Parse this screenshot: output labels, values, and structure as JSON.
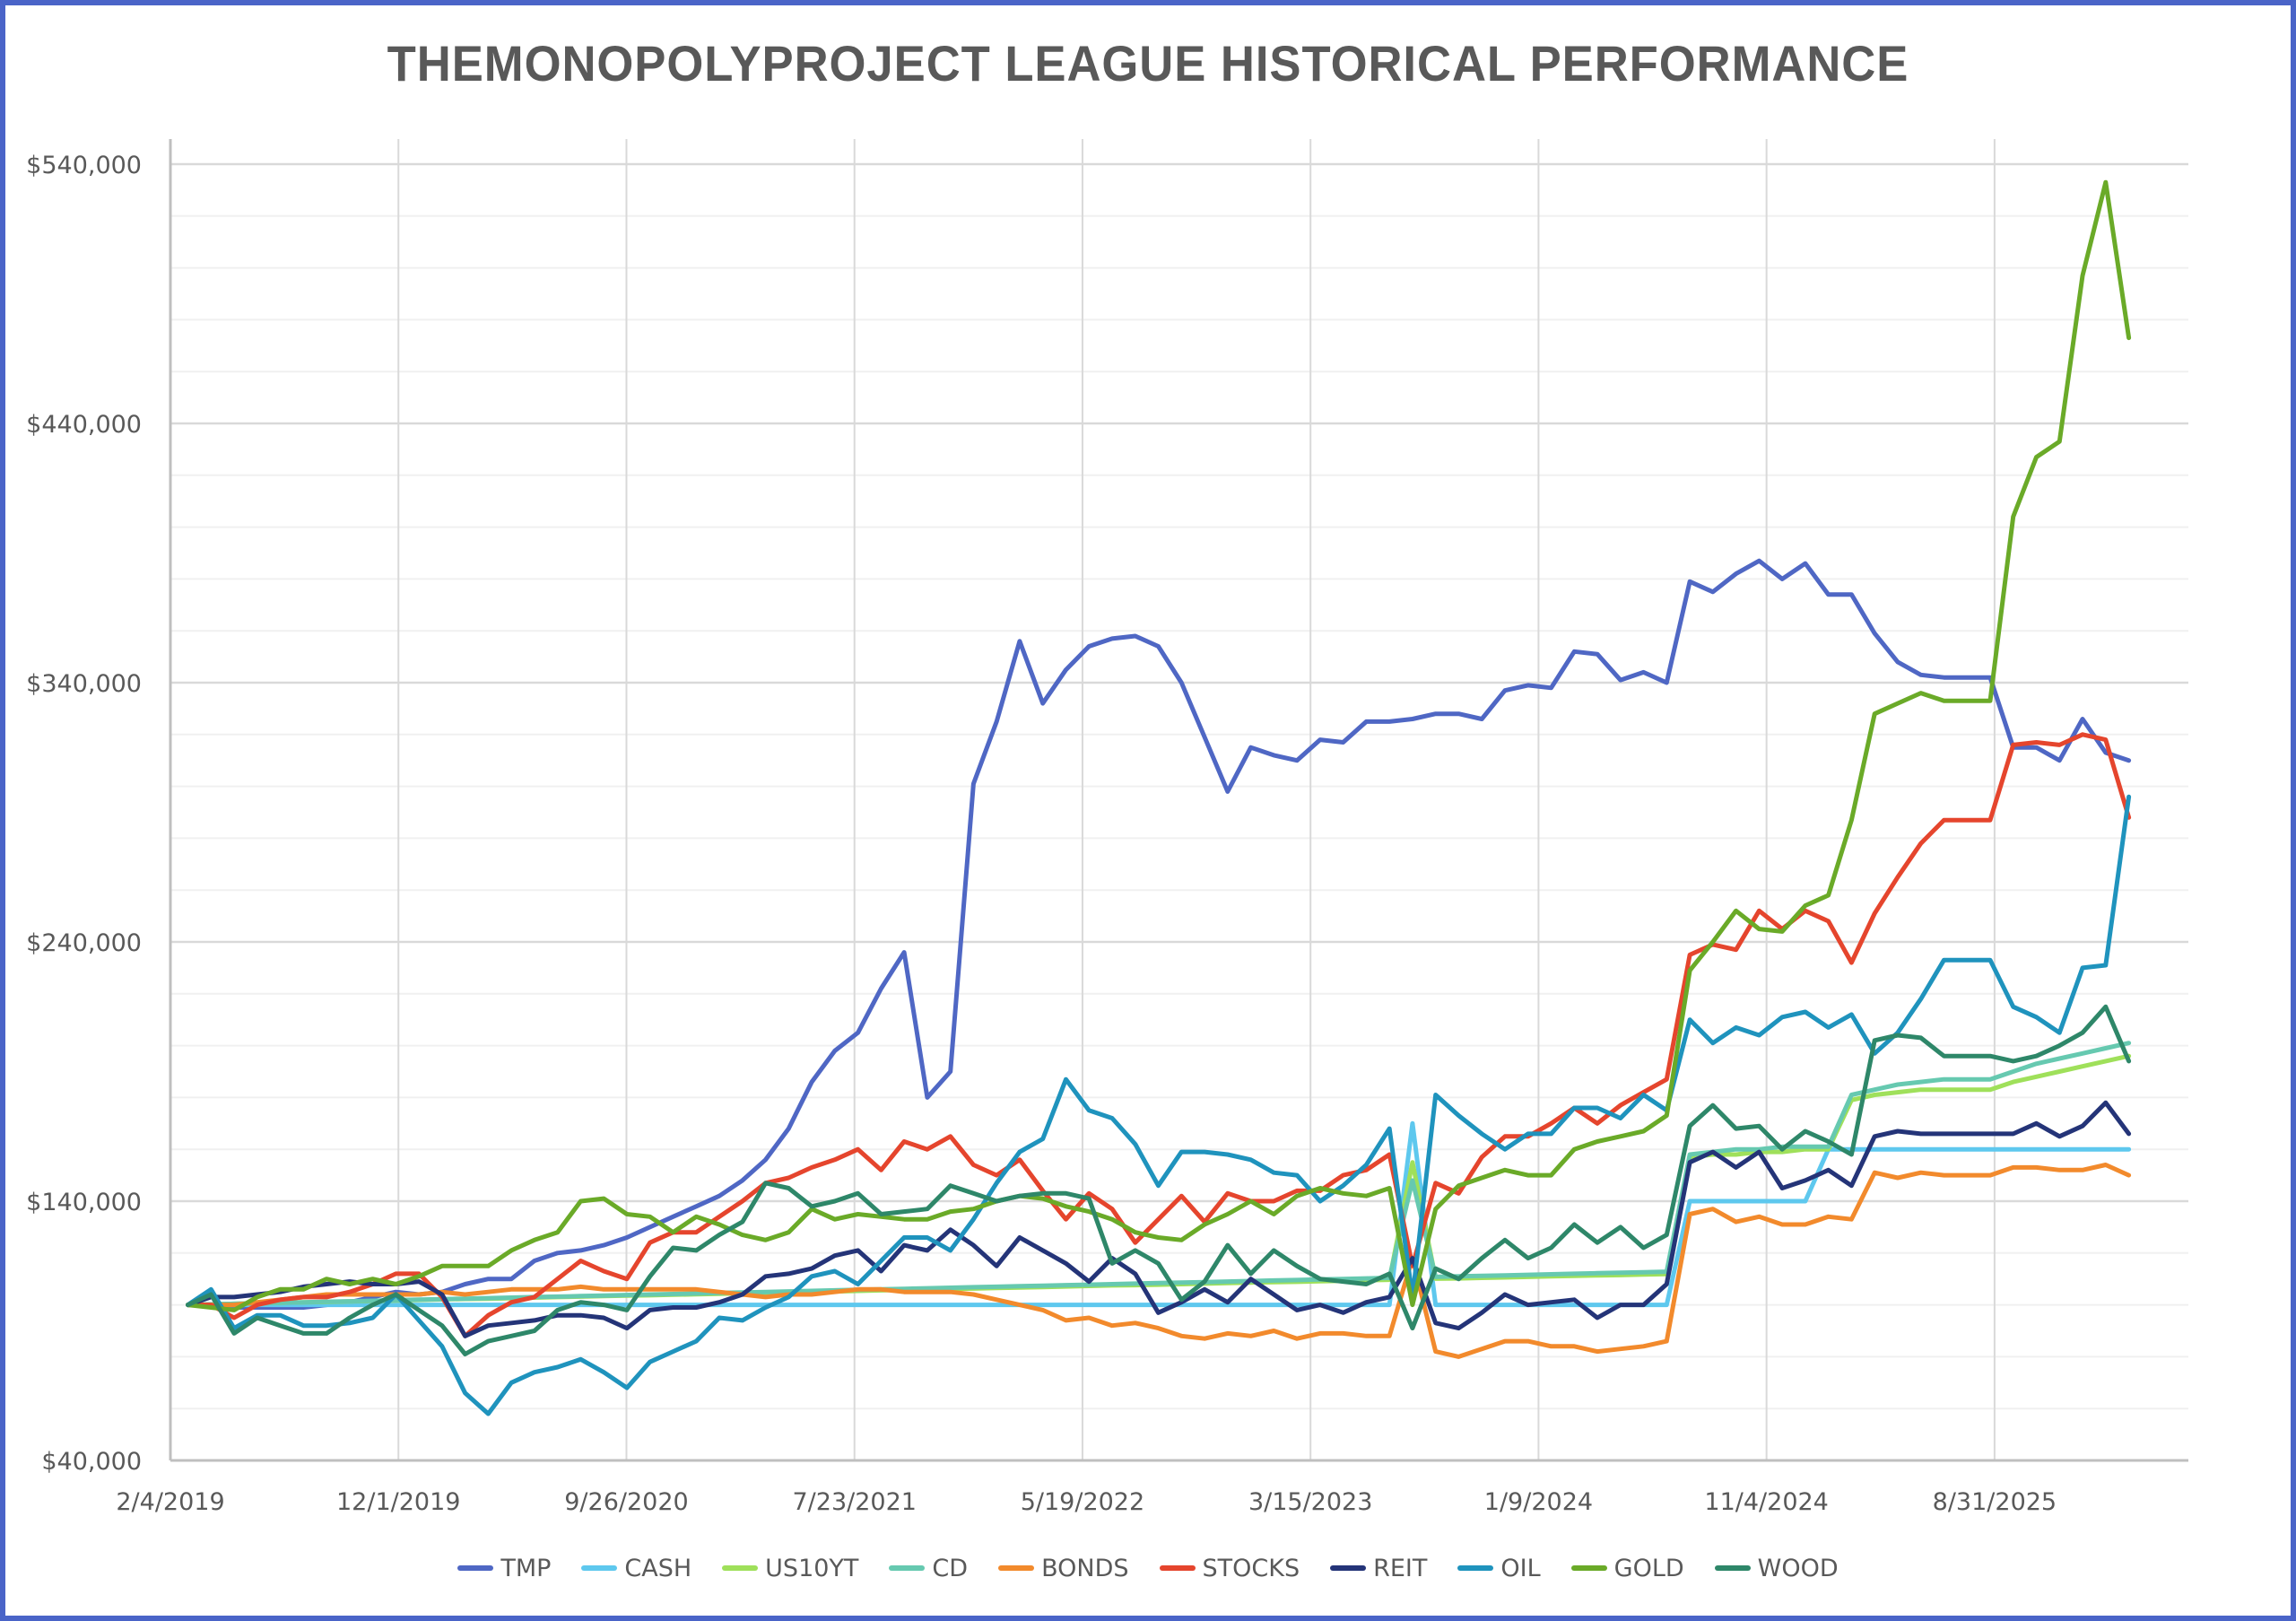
{
  "chart_data": {
    "type": "line",
    "title": "THEMONOPOLYPROJECT LEAGUE HISTORICAL PERFORMANCE",
    "xlabel": "",
    "ylabel": "",
    "ylim": [
      40000,
      540000
    ],
    "y_ticks": [
      "$540,000",
      "$440,000",
      "$340,000",
      "$240,000",
      "$140,000",
      "$40,000"
    ],
    "y_tick_values": [
      540000,
      440000,
      340000,
      240000,
      140000,
      40000
    ],
    "y_minor_step": 20000,
    "x_ticks": [
      "2/4/2019",
      "12/1/2019",
      "9/26/2020",
      "7/23/2021",
      "5/19/2022",
      "3/15/2023",
      "1/9/2024",
      "11/4/2024",
      "8/31/2025"
    ],
    "x_tick_interval_days": 300,
    "x_point_interval_days": 30.4,
    "x_first_point_offset_days": 23,
    "x_range_days": [
      0,
      2655
    ],
    "grid": true,
    "legend_position": "bottom",
    "series": [
      {
        "name": "TMP",
        "color": "#4f67c4",
        "values": [
          100000,
          100000,
          99000,
          99000,
          99000,
          99000,
          100000,
          101000,
          103000,
          105000,
          104000,
          105000,
          108000,
          110000,
          110000,
          117000,
          120000,
          121000,
          123000,
          126000,
          130000,
          134000,
          138000,
          142000,
          148000,
          156000,
          168000,
          186000,
          198000,
          205000,
          222000,
          236000,
          180000,
          190000,
          301000,
          325000,
          356000,
          332000,
          345000,
          354000,
          357000,
          358000,
          354000,
          340000,
          319000,
          298000,
          315000,
          312000,
          310000,
          318000,
          317000,
          325000,
          325000,
          326000,
          328000,
          328000,
          326000,
          337000,
          339000,
          338000,
          352000,
          351000,
          341000,
          344000,
          340000,
          379000,
          375000,
          382000,
          387000,
          380000,
          386000,
          374000,
          374000,
          359000,
          348000,
          343000,
          342000,
          342000,
          342000,
          315000,
          315000,
          310000,
          326000,
          313000,
          310000
        ]
      },
      {
        "name": "CASH",
        "color": "#5ec8ee",
        "values": [
          100000,
          100000,
          100000,
          100000,
          100000,
          100000,
          100000,
          100000,
          100000,
          100000,
          100000,
          100000,
          100000,
          100000,
          100000,
          100000,
          100000,
          100000,
          100000,
          100000,
          100000,
          100000,
          100000,
          100000,
          100000,
          100000,
          100000,
          100000,
          100000,
          100000,
          100000,
          100000,
          100000,
          100000,
          100000,
          100000,
          100000,
          100000,
          100000,
          100000,
          100000,
          100000,
          100000,
          100000,
          100000,
          100000,
          100000,
          100000,
          100000,
          100000,
          100000,
          100000,
          100000,
          170000,
          100000,
          100000,
          100000,
          100000,
          100000,
          100000,
          100000,
          100000,
          100000,
          100000,
          100000,
          140000,
          140000,
          140000,
          140000,
          140000,
          140000,
          160000,
          160000,
          160000,
          160000,
          160000,
          160000,
          160000,
          160000,
          160000,
          160000,
          160000,
          160000,
          160000,
          160000
        ]
      },
      {
        "name": "US10YT",
        "color": "#9fe05a",
        "values": [
          100000,
          100200,
          100400,
          100600,
          100800,
          101000,
          101100,
          101300,
          101500,
          101700,
          101900,
          102100,
          102300,
          102400,
          102600,
          102800,
          103000,
          103200,
          103400,
          103600,
          103700,
          103900,
          104100,
          104300,
          104500,
          104700,
          104900,
          105000,
          105200,
          105400,
          105600,
          105800,
          106000,
          106200,
          106300,
          106500,
          106700,
          106900,
          107100,
          107300,
          107500,
          107600,
          107800,
          108000,
          108200,
          108400,
          108600,
          108800,
          108900,
          109100,
          109300,
          109500,
          109700,
          155000,
          110100,
          110200,
          110400,
          110600,
          110800,
          111000,
          111200,
          111400,
          111500,
          111700,
          111900,
          157000,
          158000,
          158000,
          159000,
          159000,
          160000,
          160000,
          179000,
          181000,
          182000,
          183000,
          183000,
          183000,
          183000,
          186000,
          188000,
          190000,
          192000,
          194000,
          196000
        ]
      },
      {
        "name": "CD",
        "color": "#66c9b0",
        "values": [
          100000,
          100200,
          100400,
          100600,
          100800,
          101000,
          101200,
          101400,
          101600,
          101800,
          102000,
          102200,
          102400,
          102600,
          102800,
          103000,
          103200,
          103400,
          103600,
          103800,
          104000,
          104200,
          104400,
          104600,
          104800,
          105000,
          105200,
          105400,
          105600,
          105800,
          106000,
          106200,
          106400,
          106600,
          106800,
          107000,
          107200,
          107400,
          107600,
          107800,
          108000,
          108200,
          108400,
          108600,
          108800,
          109000,
          109200,
          109400,
          109600,
          109800,
          110000,
          110200,
          110400,
          148000,
          110800,
          111000,
          111200,
          111400,
          111600,
          111800,
          112000,
          112200,
          112400,
          112600,
          112800,
          158000,
          159000,
          160000,
          160000,
          161000,
          161000,
          161000,
          181000,
          183000,
          185000,
          186000,
          187000,
          187000,
          187000,
          190000,
          193000,
          195000,
          197000,
          199000,
          201000
        ]
      },
      {
        "name": "BONDS",
        "color": "#f28a2c",
        "values": [
          100000,
          100000,
          100000,
          101000,
          102000,
          103000,
          104000,
          104000,
          104000,
          104000,
          104000,
          105000,
          104000,
          105000,
          106000,
          106000,
          106000,
          107000,
          106000,
          106000,
          106000,
          106000,
          106000,
          105000,
          104000,
          103000,
          104000,
          104000,
          105000,
          106000,
          106000,
          105000,
          105000,
          105000,
          104000,
          102000,
          100000,
          98000,
          94000,
          95000,
          92000,
          93000,
          91000,
          88000,
          87000,
          89000,
          88000,
          90000,
          87000,
          89000,
          89000,
          88000,
          88000,
          118000,
          82000,
          80000,
          83000,
          86000,
          86000,
          84000,
          84000,
          82000,
          83000,
          84000,
          86000,
          135000,
          137000,
          132000,
          134000,
          131000,
          131000,
          134000,
          133000,
          151000,
          149000,
          151000,
          150000,
          150000,
          150000,
          153000,
          153000,
          152000,
          152000,
          154000,
          150000
        ]
      },
      {
        "name": "STOCKS",
        "color": "#e5452d",
        "values": [
          100000,
          100000,
          95000,
          100000,
          102000,
          103000,
          103000,
          105000,
          108000,
          112000,
          112000,
          103000,
          88000,
          96000,
          101000,
          103000,
          110000,
          117000,
          113000,
          110000,
          124000,
          128000,
          128000,
          134000,
          140000,
          147000,
          149000,
          153000,
          156000,
          160000,
          152000,
          163000,
          160000,
          165000,
          154000,
          150000,
          156000,
          144000,
          133000,
          143000,
          137000,
          124000,
          133000,
          142000,
          132000,
          143000,
          140000,
          140000,
          144000,
          144000,
          150000,
          152000,
          158000,
          115000,
          147000,
          143000,
          157000,
          165000,
          165000,
          170000,
          176000,
          170000,
          177000,
          182000,
          187000,
          235000,
          239000,
          237000,
          252000,
          245000,
          252000,
          248000,
          232000,
          251000,
          265000,
          278000,
          287000,
          287000,
          287000,
          316000,
          317000,
          316000,
          320000,
          318000,
          288000
        ]
      },
      {
        "name": "REIT",
        "color": "#243478",
        "values": [
          100000,
          103000,
          103000,
          104000,
          105000,
          107000,
          108000,
          109000,
          108000,
          108000,
          109000,
          104000,
          88000,
          92000,
          93000,
          94000,
          96000,
          96000,
          95000,
          91000,
          98000,
          99000,
          99000,
          101000,
          104000,
          111000,
          112000,
          114000,
          119000,
          121000,
          113000,
          123000,
          121000,
          129000,
          123000,
          115000,
          126000,
          121000,
          116000,
          109000,
          118000,
          112000,
          97000,
          101000,
          106000,
          101000,
          110000,
          104000,
          98000,
          100000,
          97000,
          101000,
          103000,
          118000,
          93000,
          91000,
          97000,
          104000,
          100000,
          101000,
          102000,
          95000,
          100000,
          100000,
          108000,
          155000,
          159000,
          153000,
          159000,
          145000,
          148000,
          152000,
          146000,
          165000,
          167000,
          166000,
          166000,
          166000,
          166000,
          166000,
          170000,
          165000,
          169000,
          178000,
          166000
        ]
      },
      {
        "name": "OIL",
        "color": "#1f93bd",
        "values": [
          100000,
          106000,
          91000,
          96000,
          96000,
          92000,
          92000,
          93000,
          95000,
          104000,
          94000,
          84000,
          66000,
          58000,
          70000,
          74000,
          76000,
          79000,
          74000,
          68000,
          78000,
          82000,
          86000,
          95000,
          94000,
          99000,
          103000,
          111000,
          113000,
          108000,
          117000,
          126000,
          126000,
          121000,
          133000,
          147000,
          159000,
          164000,
          187000,
          175000,
          172000,
          162000,
          146000,
          159000,
          159000,
          158000,
          156000,
          151000,
          150000,
          140000,
          146000,
          154000,
          168000,
          103000,
          181000,
          173000,
          166000,
          160000,
          166000,
          166000,
          176000,
          176000,
          172000,
          181000,
          175000,
          210000,
          201000,
          207000,
          204000,
          211000,
          213000,
          207000,
          212000,
          197000,
          205000,
          218000,
          233000,
          233000,
          233000,
          215000,
          211000,
          205000,
          230000,
          231000,
          296000
        ]
      },
      {
        "name": "GOLD",
        "color": "#6aaa28",
        "values": [
          100000,
          99000,
          98000,
          103000,
          106000,
          106000,
          110000,
          108000,
          110000,
          108000,
          111000,
          115000,
          115000,
          115000,
          121000,
          125000,
          128000,
          140000,
          141000,
          135000,
          134000,
          128000,
          134000,
          131000,
          127000,
          125000,
          128000,
          137000,
          133000,
          135000,
          134000,
          133000,
          133000,
          136000,
          137000,
          140000,
          142000,
          141000,
          138000,
          136000,
          133000,
          128000,
          126000,
          125000,
          131000,
          135000,
          140000,
          135000,
          142000,
          145000,
          143000,
          142000,
          145000,
          100000,
          137000,
          146000,
          149000,
          152000,
          150000,
          150000,
          160000,
          163000,
          165000,
          167000,
          173000,
          229000,
          240000,
          252000,
          245000,
          244000,
          254000,
          258000,
          287000,
          328000,
          332000,
          336000,
          333000,
          333000,
          333000,
          404000,
          427000,
          433000,
          497000,
          533000,
          473000
        ]
      },
      {
        "name": "WOOD",
        "color": "#2e8769",
        "values": [
          100000,
          104000,
          89000,
          95000,
          92000,
          89000,
          89000,
          95000,
          100000,
          104000,
          98000,
          92000,
          81000,
          86000,
          88000,
          90000,
          98000,
          101000,
          100000,
          98000,
          111000,
          122000,
          121000,
          127000,
          132000,
          147000,
          145000,
          138000,
          140000,
          143000,
          135000,
          136000,
          137000,
          146000,
          143000,
          140000,
          142000,
          143000,
          143000,
          141000,
          116000,
          121000,
          116000,
          102000,
          109000,
          123000,
          112000,
          121000,
          115000,
          110000,
          109000,
          108000,
          112000,
          91000,
          114000,
          110000,
          118000,
          125000,
          118000,
          122000,
          131000,
          124000,
          130000,
          122000,
          127000,
          169000,
          177000,
          168000,
          169000,
          160000,
          167000,
          163000,
          158000,
          202000,
          204000,
          203000,
          196000,
          196000,
          196000,
          194000,
          196000,
          200000,
          205000,
          215000,
          194000
        ]
      }
    ]
  }
}
